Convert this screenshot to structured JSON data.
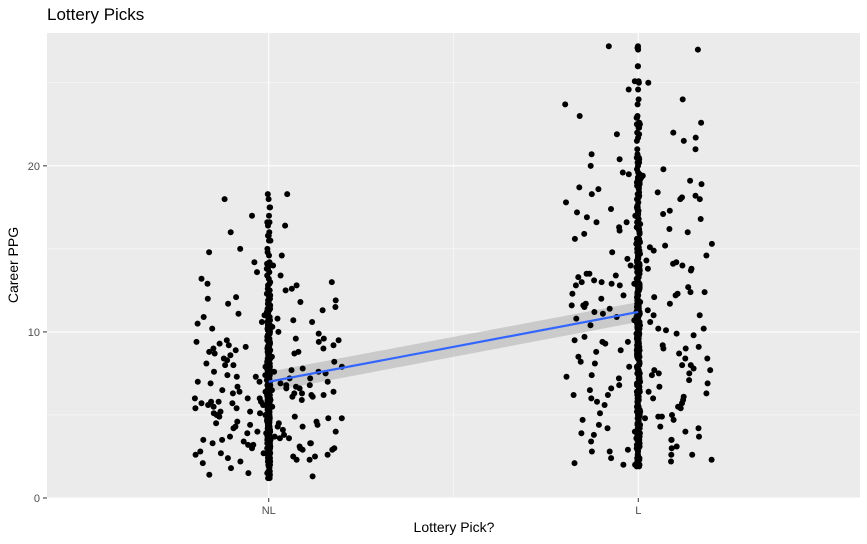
{
  "chart_data": {
    "type": "scatter",
    "title": "Lottery Picks",
    "xlabel": "Lottery Pick?",
    "ylabel": "Career PPG",
    "categories": [
      "NL",
      "L"
    ],
    "ylim": [
      0,
      28
    ],
    "yticks": [
      0,
      10,
      20
    ],
    "grid": true,
    "jitter_width": 0.4,
    "series": [
      {
        "category": "NL",
        "values": [
          1.2,
          1.4,
          1.5,
          1.8,
          2.0,
          2.1,
          2.2,
          2.3,
          2.4,
          2.5,
          2.6,
          2.7,
          2.8,
          2.9,
          3.0,
          3.0,
          3.1,
          3.2,
          3.3,
          3.4,
          3.5,
          3.5,
          3.6,
          3.7,
          3.8,
          3.9,
          4.0,
          4.0,
          4.1,
          4.2,
          4.3,
          4.3,
          4.4,
          4.5,
          4.6,
          4.6,
          4.7,
          4.8,
          4.9,
          5.0,
          5.0,
          5.1,
          5.2,
          5.2,
          5.3,
          5.4,
          5.5,
          5.5,
          5.6,
          5.7,
          5.8,
          5.8,
          5.9,
          6.0,
          6.0,
          6.1,
          6.2,
          6.3,
          6.3,
          6.4,
          6.5,
          6.5,
          6.6,
          6.7,
          6.8,
          6.9,
          7.0,
          7.0,
          7.1,
          7.2,
          7.3,
          7.4,
          7.5,
          7.5,
          7.6,
          7.7,
          7.8,
          7.9,
          8.0,
          8.1,
          8.2,
          8.3,
          8.4,
          8.5,
          8.6,
          8.7,
          8.8,
          9.0,
          9.1,
          9.2,
          9.4,
          9.5,
          9.7,
          9.9,
          10.0,
          10.2,
          10.4,
          10.6,
          10.8,
          11.0,
          11.2,
          11.5,
          11.8,
          12.0,
          12.3,
          12.6,
          13.0,
          13.4,
          13.8,
          14.2,
          14.6,
          15.0,
          15.5,
          16.0,
          16.4,
          17.0,
          17.5,
          18.0,
          18.3,
          1.3,
          2.2,
          2.9,
          3.6,
          4.4,
          5.1,
          5.9,
          6.6,
          7.3,
          8.0,
          8.9,
          9.8,
          10.9,
          12.2,
          14.0,
          3.1,
          3.9,
          4.7,
          5.4,
          6.2,
          6.9,
          7.7,
          8.6,
          9.6,
          10.5,
          11.6,
          13.2,
          2.4,
          3.3,
          4.2,
          5.0,
          5.7,
          6.4,
          7.1,
          7.9,
          8.7,
          9.3,
          10.1,
          11.3,
          12.8,
          14.8,
          1.6,
          2.6,
          3.4,
          4.1,
          4.9,
          5.6,
          6.3,
          7.2,
          8.1,
          9.0,
          10.3,
          11.9,
          2.0,
          2.8,
          3.5,
          4.3,
          5.0,
          5.8,
          6.5,
          7.4,
          8.3,
          9.5,
          10.7,
          12.5,
          15.8,
          2.7,
          3.7,
          4.5,
          5.3,
          6.1,
          6.8,
          7.6,
          8.4,
          9.2,
          10.6,
          12.1,
          1.9,
          3.2,
          4.0,
          4.8,
          5.5,
          6.2,
          7.0,
          7.8,
          8.5,
          9.4,
          11.1,
          13.6,
          16.6,
          2.3,
          3.0,
          3.8,
          4.6,
          5.2,
          6.0,
          6.7,
          7.5,
          8.2,
          9.1,
          10.0,
          11.4,
          3.6,
          4.4,
          5.1,
          5.9,
          6.8,
          7.6,
          8.8,
          10.4,
          12.9,
          2.5,
          3.3,
          4.1,
          4.9,
          5.6,
          6.4,
          7.2,
          8.0,
          9.6,
          11.7,
          14.1
        ]
      },
      {
        "category": "L",
        "values": [
          1.9,
          2.0,
          2.1,
          2.2,
          2.4,
          2.6,
          2.8,
          3.0,
          3.2,
          3.4,
          3.5,
          3.7,
          3.9,
          4.0,
          4.2,
          4.4,
          4.5,
          4.7,
          4.9,
          5.0,
          5.2,
          5.4,
          5.5,
          5.7,
          5.9,
          6.0,
          6.2,
          6.4,
          6.5,
          6.7,
          6.9,
          7.0,
          7.2,
          7.4,
          7.5,
          7.7,
          7.9,
          8.0,
          8.2,
          8.4,
          8.5,
          8.7,
          8.9,
          9.0,
          9.2,
          9.4,
          9.5,
          9.7,
          9.9,
          10.0,
          10.2,
          10.4,
          10.5,
          10.7,
          10.9,
          11.0,
          11.2,
          11.4,
          11.5,
          11.7,
          11.9,
          12.0,
          12.2,
          12.4,
          12.5,
          12.7,
          12.9,
          13.0,
          13.2,
          13.4,
          13.5,
          13.7,
          13.9,
          14.0,
          14.3,
          14.6,
          15.0,
          15.3,
          15.6,
          16.0,
          16.3,
          16.6,
          17.0,
          17.3,
          17.6,
          18.0,
          18.3,
          18.6,
          19.0,
          19.3,
          19.6,
          20.0,
          20.5,
          21.0,
          21.5,
          22.0,
          22.5,
          23.0,
          24.0,
          25.0,
          26.0,
          27.0,
          27.2,
          2.0,
          3.6,
          4.8,
          6.1,
          7.3,
          8.6,
          9.8,
          11.1,
          12.3,
          13.6,
          14.8,
          16.2,
          17.8,
          19.2,
          21.7,
          2.3,
          3.9,
          5.3,
          6.6,
          7.8,
          9.1,
          10.4,
          11.6,
          12.9,
          14.1,
          15.4,
          17.1,
          18.9,
          22.9,
          27.1,
          2.6,
          4.3,
          5.6,
          6.9,
          8.1,
          9.3,
          10.6,
          11.8,
          13.1,
          14.4,
          15.9,
          17.5,
          19.5,
          22.6,
          3.1,
          4.6,
          5.9,
          7.1,
          8.4,
          9.6,
          10.8,
          12.1,
          13.3,
          14.7,
          16.1,
          18.2,
          20.7,
          2.2,
          3.8,
          5.1,
          6.3,
          7.6,
          8.8,
          10.1,
          11.3,
          12.6,
          13.8,
          15.2,
          16.8,
          18.8,
          24.6,
          2.8,
          4.2,
          5.5,
          6.8,
          8.0,
          9.2,
          10.5,
          11.7,
          13.0,
          14.2,
          15.6,
          17.2,
          19.1,
          23.7,
          3.3,
          4.9,
          6.2,
          7.4,
          8.7,
          9.9,
          11.2,
          12.4,
          13.7,
          15.1,
          16.6,
          18.4,
          20.2,
          25.1,
          2.4,
          4.0,
          5.2,
          6.5,
          7.7,
          9.0,
          10.3,
          11.5,
          12.8,
          14.0,
          15.5,
          17.4,
          19.4,
          3.5,
          5.0,
          6.4,
          7.9,
          9.4,
          10.9,
          12.2,
          13.5,
          14.9,
          16.5,
          18.1,
          21.9,
          2.9,
          4.4,
          5.8,
          7.2,
          8.5,
          9.7,
          11.0,
          12.3,
          13.8,
          15.3,
          16.9,
          18.7,
          20.4,
          3.0,
          4.7,
          6.0,
          7.5,
          8.9,
          10.2,
          11.6,
          12.8,
          14.5,
          16.3,
          18.0,
          19.8,
          22.3
        ]
      }
    ],
    "trend_line": {
      "from": {
        "category": "NL",
        "y": 7.0
      },
      "to": {
        "category": "L",
        "y": 11.2
      },
      "color": "#3366ff",
      "band_color": "#bfbfbf"
    }
  },
  "colors": {
    "panel": "#ebebeb",
    "grid": "#ffffff",
    "point": "#000000",
    "trend": "#3366ff"
  }
}
